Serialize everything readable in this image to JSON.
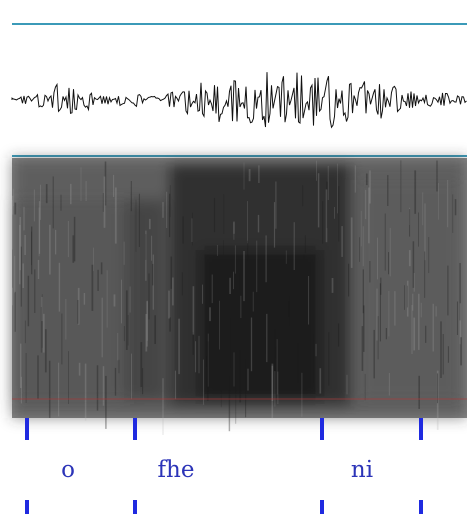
{
  "colors": {
    "background": "#ffffff",
    "frame_line": "#3b9ab8",
    "waveform": "#111111",
    "spectrogram_dark": "#202020",
    "spectrogram_light": "#8a8a8a",
    "pitch_line": "#a83a3a",
    "tier_marker": "#1f2ae0",
    "segment_text": "#2c34b8"
  },
  "segments": [
    {
      "label": "o"
    },
    {
      "label": "fhe"
    },
    {
      "label": "ni"
    }
  ]
}
